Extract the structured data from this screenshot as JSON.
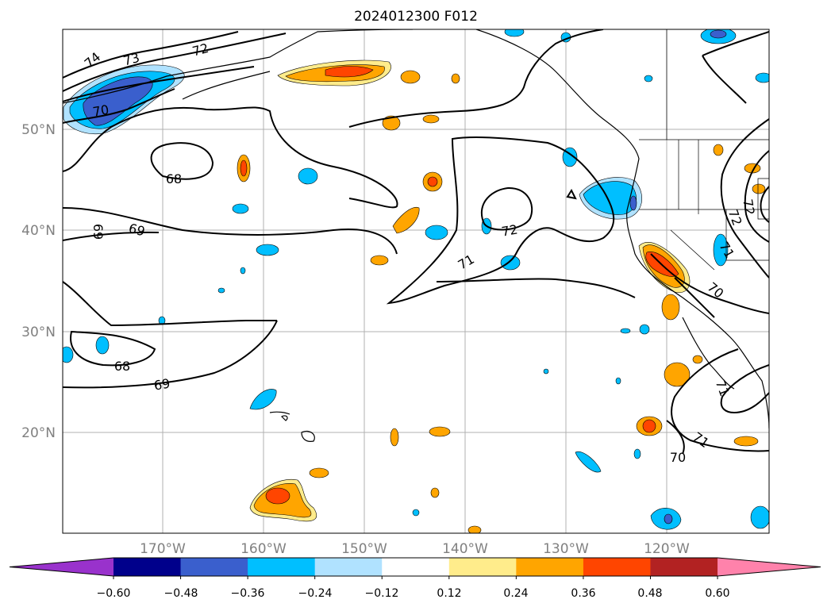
{
  "title": "2024012300 F012",
  "map": {
    "lat_labels": [
      "50°N",
      "40°N",
      "30°N",
      "20°N"
    ],
    "lon_labels": [
      "170°W",
      "160°W",
      "150°W",
      "140°W",
      "130°W",
      "120°W"
    ],
    "grid": true,
    "extent": {
      "lon": [
        -180,
        -110
      ],
      "lat": [
        10,
        60
      ]
    }
  },
  "colorbar": {
    "ticks": [
      "−0.60",
      "−0.48",
      "−0.36",
      "−0.24",
      "−0.12",
      "0.12",
      "0.24",
      "0.36",
      "0.48",
      "0.60"
    ],
    "colors": [
      "#9932cc",
      "#00008b",
      "#3a5fcd",
      "#00bfff",
      "#b0e2ff",
      "#ffffff",
      "#ffec8b",
      "#ffa500",
      "#ff4500",
      "#b22222",
      "#ff82ab"
    ]
  },
  "contour_labels": [
    "74",
    "73",
    "72",
    "70",
    "68",
    "69",
    "69",
    "68",
    "69",
    "72",
    "71",
    "71",
    "72",
    "72",
    "71",
    "70",
    "71",
    "70",
    "70"
  ]
}
